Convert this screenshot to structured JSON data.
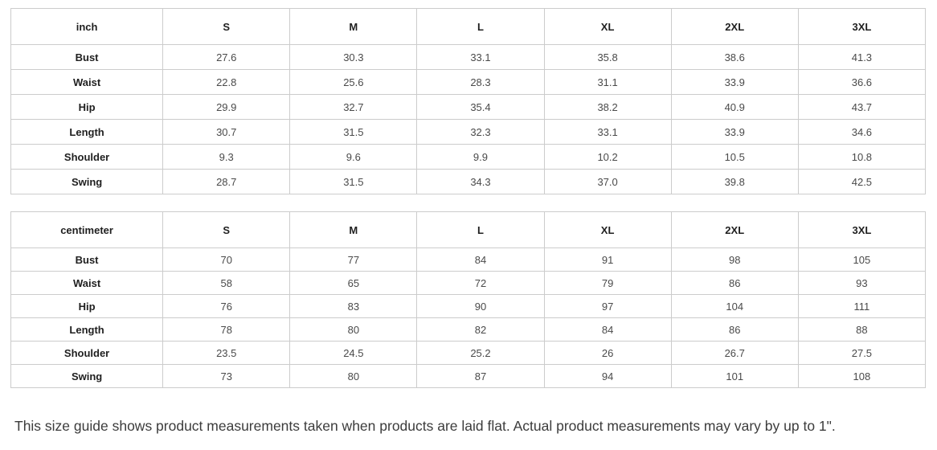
{
  "tables": [
    {
      "unit_label": "inch",
      "columns": [
        "S",
        "M",
        "L",
        "XL",
        "2XL",
        "3XL"
      ],
      "rows": [
        {
          "label": "Bust",
          "values": [
            "27.6",
            "30.3",
            "33.1",
            "35.8",
            "38.6",
            "41.3"
          ]
        },
        {
          "label": "Waist",
          "values": [
            "22.8",
            "25.6",
            "28.3",
            "31.1",
            "33.9",
            "36.6"
          ]
        },
        {
          "label": "Hip",
          "values": [
            "29.9",
            "32.7",
            "35.4",
            "38.2",
            "40.9",
            "43.7"
          ]
        },
        {
          "label": "Length",
          "values": [
            "30.7",
            "31.5",
            "32.3",
            "33.1",
            "33.9",
            "34.6"
          ]
        },
        {
          "label": "Shoulder",
          "values": [
            "9.3",
            "9.6",
            "9.9",
            "10.2",
            "10.5",
            "10.8"
          ]
        },
        {
          "label": "Swing",
          "values": [
            "28.7",
            "31.5",
            "34.3",
            "37.0",
            "39.8",
            "42.5"
          ]
        }
      ]
    },
    {
      "unit_label": "centimeter",
      "columns": [
        "S",
        "M",
        "L",
        "XL",
        "2XL",
        "3XL"
      ],
      "rows": [
        {
          "label": "Bust",
          "values": [
            "70",
            "77",
            "84",
            "91",
            "98",
            "105"
          ]
        },
        {
          "label": "Waist",
          "values": [
            "58",
            "65",
            "72",
            "79",
            "86",
            "93"
          ]
        },
        {
          "label": "Hip",
          "values": [
            "76",
            "83",
            "90",
            "97",
            "104",
            "111"
          ]
        },
        {
          "label": "Length",
          "values": [
            "78",
            "80",
            "82",
            "84",
            "86",
            "88"
          ]
        },
        {
          "label": "Shoulder",
          "values": [
            "23.5",
            "24.5",
            "25.2",
            "26",
            "26.7",
            "27.5"
          ]
        },
        {
          "label": "Swing",
          "values": [
            "73",
            "80",
            "87",
            "94",
            "101",
            "108"
          ]
        }
      ]
    }
  ],
  "footer": {
    "note": "This size guide shows product measurements taken when products are laid flat. Actual product measurements may vary by up to 1\"."
  },
  "colors": {
    "border": "#cccccc",
    "header_text": "#1f1f1f",
    "value_text": "#4a4a4a",
    "note_text": "#3c3c3c"
  }
}
